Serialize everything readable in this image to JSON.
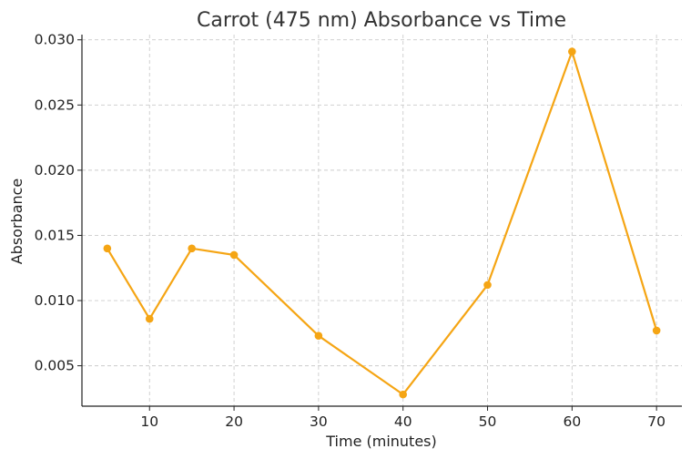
{
  "chart_data": {
    "type": "line",
    "title": "Carrot (475 nm) Absorbance vs Time",
    "xlabel": "Time (minutes)",
    "ylabel": "Absorbance",
    "xlim": [
      2,
      73
    ],
    "ylim": [
      0.0019,
      0.0304
    ],
    "xticks": [
      10,
      20,
      30,
      40,
      50,
      60,
      70
    ],
    "yticks": [
      0.005,
      0.01,
      0.015,
      0.02,
      0.025,
      0.03
    ],
    "ytick_labels": [
      "0.005",
      "0.010",
      "0.015",
      "0.020",
      "0.025",
      "0.030"
    ],
    "grid": true,
    "color": "#f5a514",
    "x": [
      5,
      10,
      15,
      20,
      30,
      40,
      50,
      60,
      70
    ],
    "y": [
      0.014,
      0.0086,
      0.014,
      0.0135,
      0.0073,
      0.0028,
      0.0112,
      0.0291,
      0.0077
    ]
  }
}
